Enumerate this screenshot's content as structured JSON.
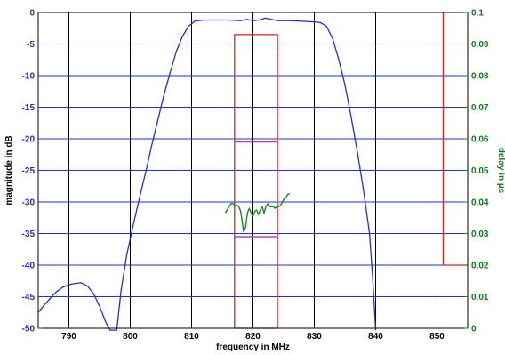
{
  "chart_data": {
    "type": "line",
    "title": "",
    "xlabel": "frequency in MHz",
    "ylabel_left": "magnitude in dB",
    "ylabel_right": "delay in µs",
    "xlim": [
      785,
      855
    ],
    "ylim_left": [
      -50,
      0
    ],
    "ylim_right": [
      0,
      0.1
    ],
    "xticks": [
      790,
      800,
      810,
      820,
      830,
      840,
      850
    ],
    "yticks_left": [
      0,
      -5,
      -10,
      -15,
      -20,
      -25,
      -30,
      -35,
      -40,
      -45,
      -50
    ],
    "yticks_right": [
      "0",
      "0.01",
      "0.02",
      "0.03",
      "0.04",
      "0.05",
      "0.06",
      "0.07",
      "0.08",
      "0.09",
      "0.1"
    ],
    "grid": true,
    "colors": {
      "magnitude": "#1f2fdb",
      "delay": "#1a8a1a",
      "mask": "#e8201f",
      "delay_mask": "#d21fd2",
      "vgrid": "#000000",
      "hgrid": "#1f2fdb",
      "left_axis": "#1f2fb8",
      "right_axis": "#0f7a1f"
    },
    "series": [
      {
        "axis": "left",
        "points": [
          [
            785,
            -47.5
          ],
          [
            786,
            -46.3
          ],
          [
            787,
            -45.2
          ],
          [
            788,
            -44.2
          ],
          [
            789,
            -43.5
          ],
          [
            790,
            -43.1
          ],
          [
            791,
            -42.9
          ],
          [
            792,
            -42.8
          ],
          [
            793,
            -43.3
          ],
          [
            794,
            -44.5
          ],
          [
            795,
            -46.5
          ],
          [
            796,
            -49
          ],
          [
            796.7,
            -50.3
          ],
          [
            797.8,
            -50.3
          ],
          [
            798.5,
            -44
          ],
          [
            799.4,
            -38.5
          ],
          [
            800.4,
            -34
          ],
          [
            801.6,
            -29
          ],
          [
            802.6,
            -25
          ],
          [
            803.5,
            -21
          ],
          [
            804.5,
            -17
          ],
          [
            805.5,
            -13
          ],
          [
            806.5,
            -9.5
          ],
          [
            807.5,
            -6.2
          ],
          [
            808.5,
            -3.8
          ],
          [
            809.5,
            -2.2
          ],
          [
            810.5,
            -1.4
          ],
          [
            812,
            -1.2
          ],
          [
            814,
            -1.2
          ],
          [
            816,
            -1.2
          ],
          [
            818,
            -1.3
          ],
          [
            819,
            -1.1
          ],
          [
            820,
            -1.3
          ],
          [
            821,
            -1.2
          ],
          [
            822,
            -0.9
          ],
          [
            823,
            -1.1
          ],
          [
            824,
            -1.3
          ],
          [
            826,
            -1.3
          ],
          [
            828,
            -1.4
          ],
          [
            830,
            -1.5
          ],
          [
            831,
            -1.6
          ],
          [
            832,
            -2.2
          ],
          [
            833,
            -4.2
          ],
          [
            834,
            -7.5
          ],
          [
            835,
            -11.5
          ],
          [
            836,
            -16.5
          ],
          [
            837,
            -22
          ],
          [
            838,
            -28
          ],
          [
            839,
            -35
          ],
          [
            839.5,
            -42
          ],
          [
            840,
            -50.3
          ]
        ]
      },
      {
        "axis": "right",
        "points": [
          [
            815.5,
            0.0365
          ],
          [
            815.8,
            0.0375
          ],
          [
            816.1,
            0.0385
          ],
          [
            816.4,
            0.0395
          ],
          [
            816.8,
            0.0395
          ],
          [
            817.1,
            0.0385
          ],
          [
            817.4,
            0.039
          ],
          [
            817.7,
            0.0385
          ],
          [
            818,
            0.037
          ],
          [
            818.3,
            0.033
          ],
          [
            818.5,
            0.0305
          ],
          [
            818.8,
            0.032
          ],
          [
            819.1,
            0.0365
          ],
          [
            819.4,
            0.038
          ],
          [
            819.7,
            0.0365
          ],
          [
            820,
            0.0355
          ],
          [
            820.3,
            0.037
          ],
          [
            820.6,
            0.0375
          ],
          [
            820.9,
            0.036
          ],
          [
            821.2,
            0.0375
          ],
          [
            821.5,
            0.0385
          ],
          [
            821.8,
            0.0365
          ],
          [
            822.1,
            0.0385
          ],
          [
            822.4,
            0.0395
          ],
          [
            822.7,
            0.0385
          ],
          [
            823.0,
            0.0385
          ],
          [
            823.3,
            0.0385
          ],
          [
            823.6,
            0.038
          ],
          [
            823.9,
            0.0385
          ],
          [
            824.2,
            0.0385
          ],
          [
            824.5,
            0.039
          ],
          [
            824.8,
            0.04
          ],
          [
            825.1,
            0.041
          ],
          [
            825.4,
            0.0415
          ],
          [
            825.7,
            0.0425
          ],
          [
            826.0,
            0.0425
          ]
        ]
      }
    ],
    "mask": {
      "axis": "left",
      "rect": {
        "x0": 817,
        "x1": 824,
        "y_top": -3.5,
        "y_bottom": -50
      },
      "step": {
        "x": 851,
        "y": -40,
        "x_end": 855
      }
    },
    "delay_mask": {
      "axis": "right",
      "x0": 817,
      "x1": 824,
      "y_values": [
        0.059,
        0.029
      ]
    }
  }
}
